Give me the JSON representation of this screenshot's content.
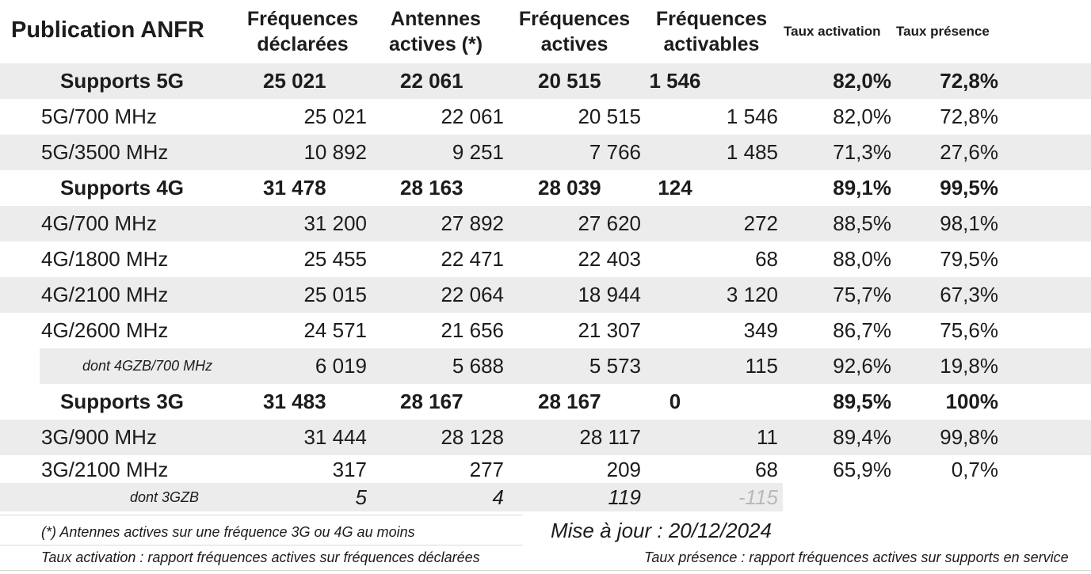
{
  "header": {
    "title": "Publication ANFR",
    "columns": [
      "Fréquences\ndéclarées",
      "Antennes\nactives (*)",
      "Fréquences\nactives",
      "Fréquences\nactivables",
      "Taux activation",
      "Taux présence"
    ]
  },
  "rows": [
    {
      "label": "Supports 5G",
      "values": [
        "25 021",
        "22 061",
        "20 515",
        "1 546",
        "82,0%",
        "72,8%"
      ]
    },
    {
      "label": "5G/700 MHz",
      "values": [
        "25 021",
        "22 061",
        "20 515",
        "1 546",
        "82,0%",
        "72,8%"
      ]
    },
    {
      "label": "5G/3500 MHz",
      "values": [
        "10 892",
        "9 251",
        "7 766",
        "1 485",
        "71,3%",
        "27,6%"
      ]
    },
    {
      "label": "Supports 4G",
      "values": [
        "31 478",
        "28 163",
        "28 039",
        "124",
        "89,1%",
        "99,5%"
      ]
    },
    {
      "label": "4G/700 MHz",
      "values": [
        "31 200",
        "27 892",
        "27 620",
        "272",
        "88,5%",
        "98,1%"
      ]
    },
    {
      "label": "4G/1800 MHz",
      "values": [
        "25 455",
        "22 471",
        "22 403",
        "68",
        "88,0%",
        "79,5%"
      ]
    },
    {
      "label": "4G/2100 MHz",
      "values": [
        "25 015",
        "22 064",
        "18 944",
        "3 120",
        "75,7%",
        "67,3%"
      ]
    },
    {
      "label": "4G/2600 MHz",
      "values": [
        "24 571",
        "21 656",
        "21 307",
        "349",
        "86,7%",
        "75,6%"
      ]
    },
    {
      "label": "dont 4GZB/700 MHz",
      "values": [
        "6 019",
        "5 688",
        "5 573",
        "115",
        "92,6%",
        "19,8%"
      ]
    },
    {
      "label": "Supports 3G",
      "values": [
        "31 483",
        "28 167",
        "28 167",
        "0",
        "89,5%",
        "100%"
      ]
    },
    {
      "label": "3G/900 MHz",
      "values": [
        "31 444",
        "28 128",
        "28 117",
        "11",
        "89,4%",
        "99,8%"
      ]
    },
    {
      "label": "3G/2100 MHz",
      "values": [
        "317",
        "277",
        "209",
        "68",
        "65,9%",
        "0,7%"
      ]
    },
    {
      "label": "dont 3GZB",
      "values": [
        "5",
        "4",
        "119",
        "-115"
      ]
    }
  ],
  "footer": {
    "note_antennas": "(*) Antennes actives sur une fréquence 3G ou 4G au moins",
    "update": "Mise à jour : 20/12/2024",
    "note_activation": "Taux activation : rapport fréquences actives sur fréquences déclarées",
    "note_presence": "Taux présence : rapport fréquences actives sur supports en service"
  }
}
